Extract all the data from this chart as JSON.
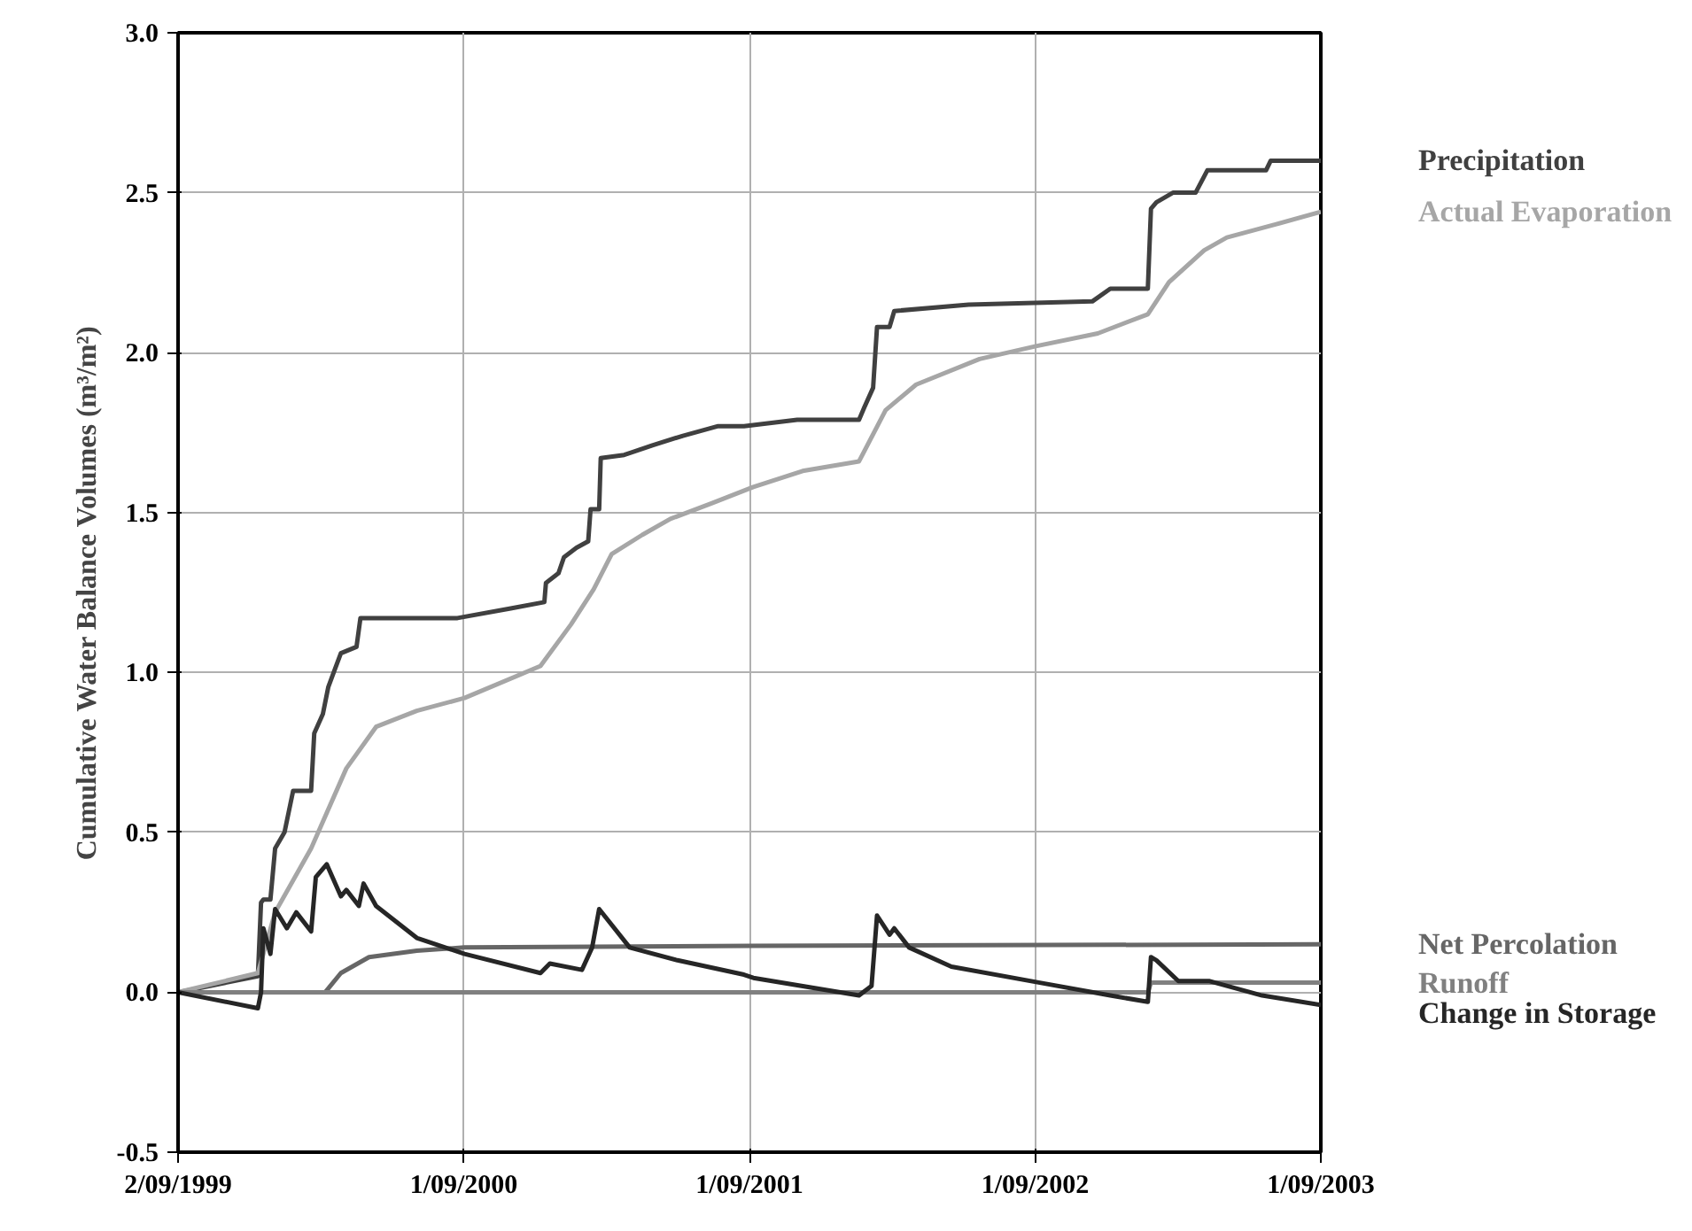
{
  "chart_data": {
    "type": "line",
    "ylabel": "Cumulative Water Balance Volumes (m³/m²)",
    "xlim": [
      "1999-09-02",
      "2003-09-01"
    ],
    "xticks": [
      {
        "value": "1999-09-02",
        "label": "2/09/1999"
      },
      {
        "value": "2000-09-01",
        "label": "1/09/2000"
      },
      {
        "value": "2001-09-01",
        "label": "1/09/2001"
      },
      {
        "value": "2002-09-01",
        "label": "1/09/2002"
      },
      {
        "value": "2003-09-01",
        "label": "1/09/2003"
      }
    ],
    "ylim": [
      -0.5,
      3.0
    ],
    "yticks": [
      -0.5,
      {
        "value": 0,
        "label": "0.0"
      },
      0.5,
      {
        "value": 1,
        "label": "1.0"
      },
      1.5,
      {
        "value": 2,
        "label": "2.0"
      },
      2.5,
      {
        "value": 3,
        "label": "3.0"
      }
    ],
    "grid": true,
    "marker": "none",
    "line_style": "solid",
    "series": [
      {
        "name": "Precipitation",
        "color": "#404040",
        "x": [
          "1999-09-02",
          "1999-12-13",
          "1999-12-17",
          "1999-12-20",
          "1999-12-29",
          "2000-01-04",
          "2000-01-16",
          "2000-01-27",
          "2000-02-19",
          "2000-02-23",
          "2000-03-05",
          "2000-03-12",
          "2000-03-28",
          "2000-04-17",
          "2000-04-22",
          "2000-08-24",
          "2000-10-31",
          "2000-12-13",
          "2000-12-15",
          "2000-12-31",
          "2001-01-07",
          "2001-01-23",
          "2001-02-07",
          "2001-02-10",
          "2001-02-21",
          "2001-02-23",
          "2001-03-25",
          "2001-04-30",
          "2001-06-08",
          "2001-07-23",
          "2001-08-25",
          "2001-11-01",
          "2002-01-19",
          "2002-01-26",
          "2002-02-06",
          "2002-02-11",
          "2002-02-27",
          "2002-03-05",
          "2002-06-08",
          "2002-11-13",
          "2002-12-06",
          "2003-01-23",
          "2003-01-27",
          "2003-02-03",
          "2003-02-24",
          "2003-03-25",
          "2003-04-09",
          "2003-06-23",
          "2003-06-29",
          "2003-09-01"
        ],
        "values": [
          0,
          0.05,
          0.28,
          0.29,
          0.29,
          0.45,
          0.5,
          0.63,
          0.63,
          0.81,
          0.87,
          0.955,
          1.06,
          1.08,
          1.17,
          1.17,
          1.2,
          1.22,
          1.28,
          1.31,
          1.36,
          1.39,
          1.41,
          1.51,
          1.51,
          1.67,
          1.68,
          1.71,
          1.74,
          1.77,
          1.77,
          1.79,
          1.79,
          1.83,
          1.89,
          2.08,
          2.08,
          2.13,
          2.15,
          2.16,
          2.2,
          2.2,
          2.45,
          2.47,
          2.5,
          2.5,
          2.57,
          2.57,
          2.6,
          2.6
        ]
      },
      {
        "name": "Actual Evaporation",
        "color": "#a6a6a6",
        "x": [
          "1999-09-02",
          "1999-12-13",
          "2000-01-04",
          "2000-02-19",
          "2000-04-04",
          "2000-05-12",
          "2000-07-03",
          "2000-09-02",
          "2000-12-08",
          "2001-01-16",
          "2001-02-14",
          "2001-03-09",
          "2001-04-17",
          "2001-05-23",
          "2001-07-16",
          "2001-09-06",
          "2001-11-08",
          "2002-01-19",
          "2002-02-22",
          "2002-04-02",
          "2002-06-22",
          "2002-09-02",
          "2002-11-20",
          "2003-01-23",
          "2003-02-19",
          "2003-04-05",
          "2003-05-04",
          "2003-07-04",
          "2003-09-01"
        ],
        "values": [
          0,
          0.06,
          0.25,
          0.45,
          0.7,
          0.83,
          0.88,
          0.92,
          1.02,
          1.15,
          1.26,
          1.37,
          1.43,
          1.48,
          1.53,
          1.58,
          1.63,
          1.66,
          1.82,
          1.9,
          1.98,
          2.02,
          2.06,
          2.12,
          2.22,
          2.32,
          2.36,
          2.4,
          2.44
        ]
      },
      {
        "name": "Net Percolation",
        "color": "#666666",
        "x": [
          "1999-09-02",
          "2000-03-08",
          "2000-03-28",
          "2000-05-03",
          "2000-07-03",
          "2000-09-02",
          "2001-09-06",
          "2003-09-01"
        ],
        "values": [
          0,
          0,
          0.06,
          0.11,
          0.13,
          0.14,
          0.145,
          0.15
        ]
      },
      {
        "name": "Runoff",
        "color": "#808080",
        "x": [
          "1999-09-02",
          "2003-01-23",
          "2003-01-27",
          "2003-09-01"
        ],
        "values": [
          0,
          0,
          0.03,
          0.03
        ]
      },
      {
        "name": "Change in Storage",
        "color": "#262626",
        "x": [
          "1999-09-02",
          "1999-12-13",
          "1999-12-17",
          "1999-12-20",
          "1999-12-29",
          "2000-01-04",
          "2000-01-19",
          "2000-01-31",
          "2000-02-19",
          "2000-02-25",
          "2000-03-10",
          "2000-03-28",
          "2000-04-04",
          "2000-04-20",
          "2000-04-26",
          "2000-05-12",
          "2000-07-03",
          "2000-09-02",
          "2000-12-08",
          "2000-12-20",
          "2001-01-30",
          "2001-02-12",
          "2001-02-21",
          "2001-04-01",
          "2001-06-01",
          "2001-08-25",
          "2001-09-06",
          "2002-01-19",
          "2002-02-04",
          "2002-02-11",
          "2002-02-27",
          "2002-03-05",
          "2002-03-24",
          "2002-05-17",
          "2002-09-07",
          "2002-12-06",
          "2003-01-23",
          "2003-01-27",
          "2003-02-03",
          "2003-03-03",
          "2003-04-12",
          "2003-06-18",
          "2003-09-01"
        ],
        "values": [
          0,
          -0.05,
          0,
          0.2,
          0.12,
          0.26,
          0.2,
          0.25,
          0.19,
          0.36,
          0.4,
          0.3,
          0.32,
          0.27,
          0.34,
          0.27,
          0.17,
          0.12,
          0.06,
          0.09,
          0.07,
          0.14,
          0.26,
          0.14,
          0.1,
          0.055,
          0.045,
          -0.01,
          0.02,
          0.24,
          0.18,
          0.2,
          0.14,
          0.08,
          0.03,
          -0.01,
          -0.03,
          0.11,
          0.1,
          0.035,
          0.035,
          -0.01,
          -0.04
        ]
      }
    ]
  }
}
